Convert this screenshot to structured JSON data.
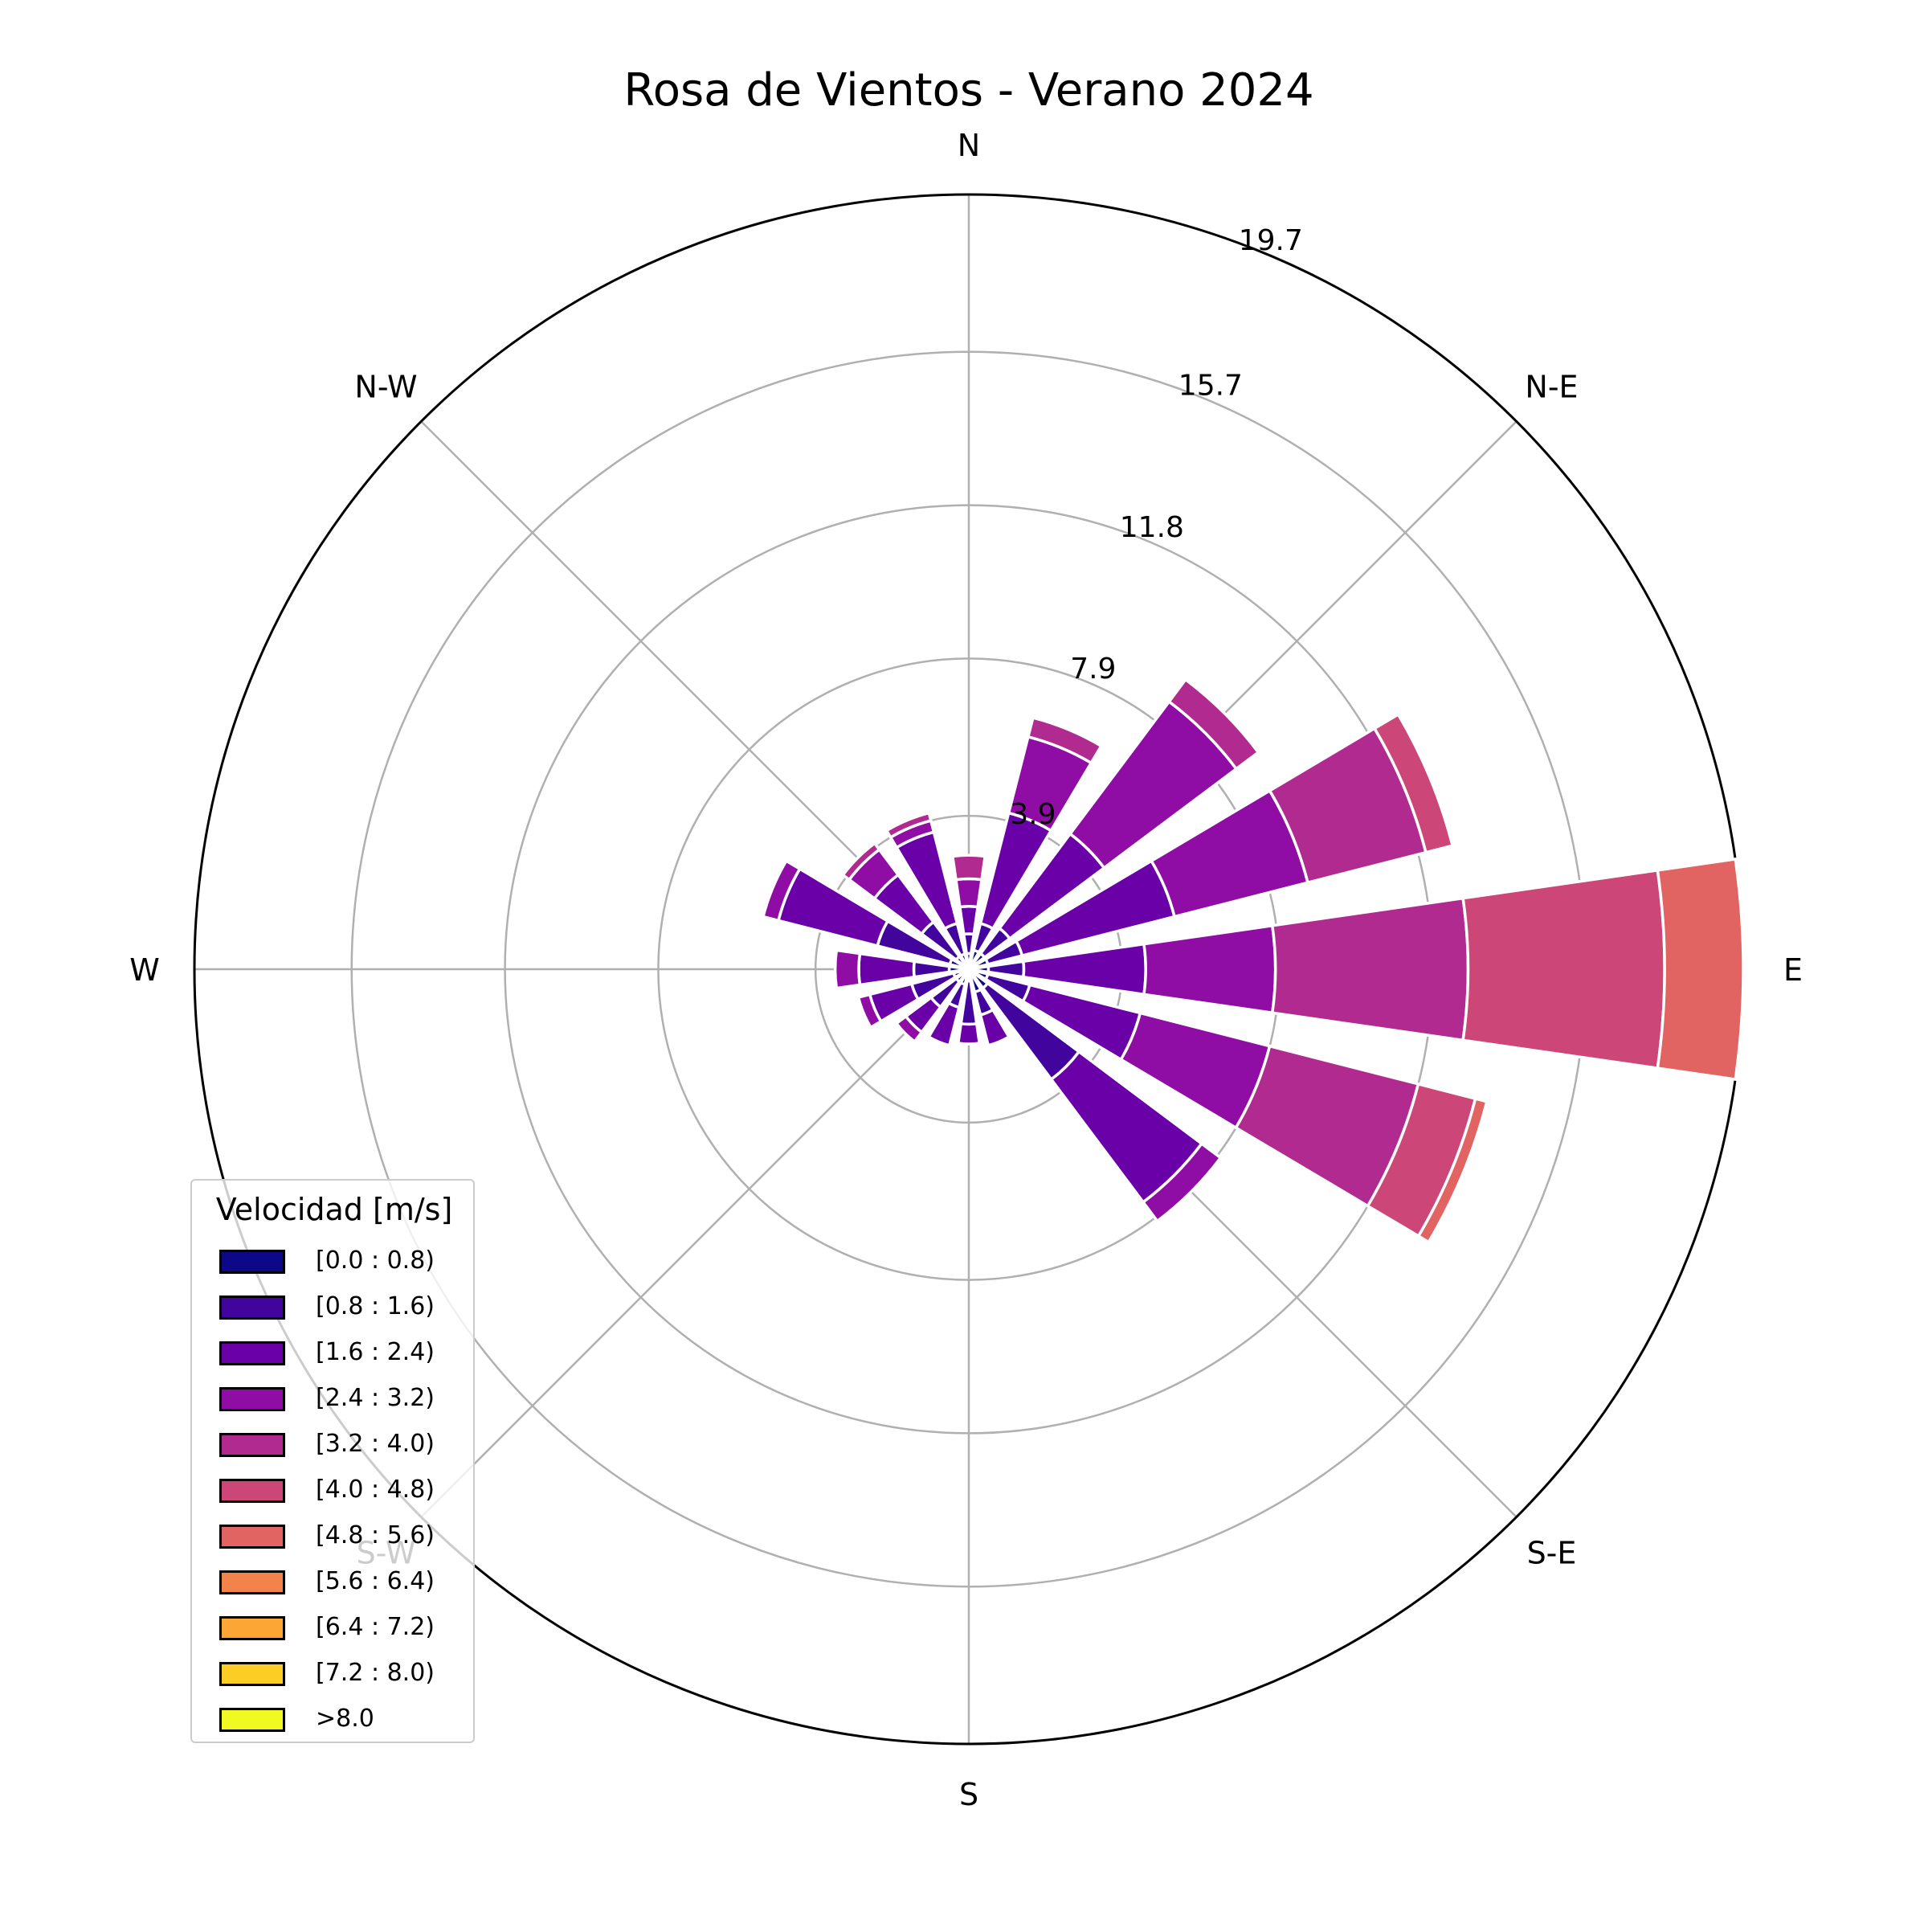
{
  "chart_data": {
    "type": "windrose",
    "title": "Rosa de Vientos - Verano 2024",
    "directions": [
      "N",
      "N-E",
      "E",
      "S-E",
      "S",
      "S-W",
      "W",
      "N-W"
    ],
    "radial_ticks": [
      "3.9",
      "7.9",
      "11.8",
      "15.7",
      "19.7"
    ],
    "rmax": 19.7,
    "legend": {
      "title": "Velocidad [m/s]",
      "placement": "lower-left",
      "bins": [
        "[0.0 : 0.8)",
        "[0.8 : 1.6)",
        "[1.6 : 2.4)",
        "[2.4 : 3.2)",
        "[3.2 : 4.0)",
        "[4.0 : 4.8)",
        "[4.8 : 5.6)",
        "[5.6 : 6.4)",
        "[6.4 : 7.2)",
        "[7.2 : 8.0)",
        ">8.0"
      ],
      "colors": [
        "#0d0887",
        "#41049d",
        "#6a00a8",
        "#8f0da4",
        "#b12a90",
        "#cc4778",
        "#e16462",
        "#f2844b",
        "#fca636",
        "#fcce25",
        "#f0f921"
      ]
    },
    "sectors": [
      {
        "direction_deg": 0.0,
        "cumulative": [
          0.4,
          0.9,
          1.6,
          2.3,
          2.9
        ]
      },
      {
        "direction_deg": 22.5,
        "cumulative": [
          0.5,
          1.2,
          4.1,
          6.1,
          6.6
        ]
      },
      {
        "direction_deg": 45.0,
        "cumulative": [
          0.5,
          1.3,
          4.3,
          8.5,
          9.2
        ]
      },
      {
        "direction_deg": 67.5,
        "cumulative": [
          0.5,
          1.4,
          5.4,
          8.9,
          12.0,
          12.7
        ]
      },
      {
        "direction_deg": 90.0,
        "cumulative": [
          0.5,
          1.4,
          4.5,
          7.8,
          12.7,
          17.7,
          19.7
        ]
      },
      {
        "direction_deg": 112.5,
        "cumulative": [
          0.5,
          1.6,
          4.5,
          7.9,
          11.8,
          13.3,
          13.6
        ]
      },
      {
        "direction_deg": 135.0,
        "cumulative": [
          0.6,
          3.5,
          7.4,
          8.0
        ]
      },
      {
        "direction_deg": 157.5,
        "cumulative": [
          0.6,
          1.2,
          2.0
        ]
      },
      {
        "direction_deg": 180.0,
        "cumulative": [
          0.3,
          1.4,
          1.9
        ]
      },
      {
        "direction_deg": 202.5,
        "cumulative": [
          0.4,
          1.0,
          2.0
        ]
      },
      {
        "direction_deg": 225.0,
        "cumulative": [
          0.4,
          1.2,
          2.0,
          2.3
        ]
      },
      {
        "direction_deg": 247.5,
        "cumulative": [
          0.4,
          1.5,
          2.6,
          2.9
        ]
      },
      {
        "direction_deg": 270.0,
        "cumulative": [
          0.5,
          1.4,
          2.8,
          3.4
        ]
      },
      {
        "direction_deg": 292.5,
        "cumulative": [
          0.5,
          2.4,
          5.0,
          5.4
        ]
      },
      {
        "direction_deg": 315.0,
        "cumulative": [
          0.4,
          1.5,
          3.0,
          3.8,
          4.0
        ]
      },
      {
        "direction_deg": 337.5,
        "cumulative": [
          0.4,
          1.2,
          3.6,
          3.9,
          4.1
        ]
      }
    ],
    "grid": true
  }
}
